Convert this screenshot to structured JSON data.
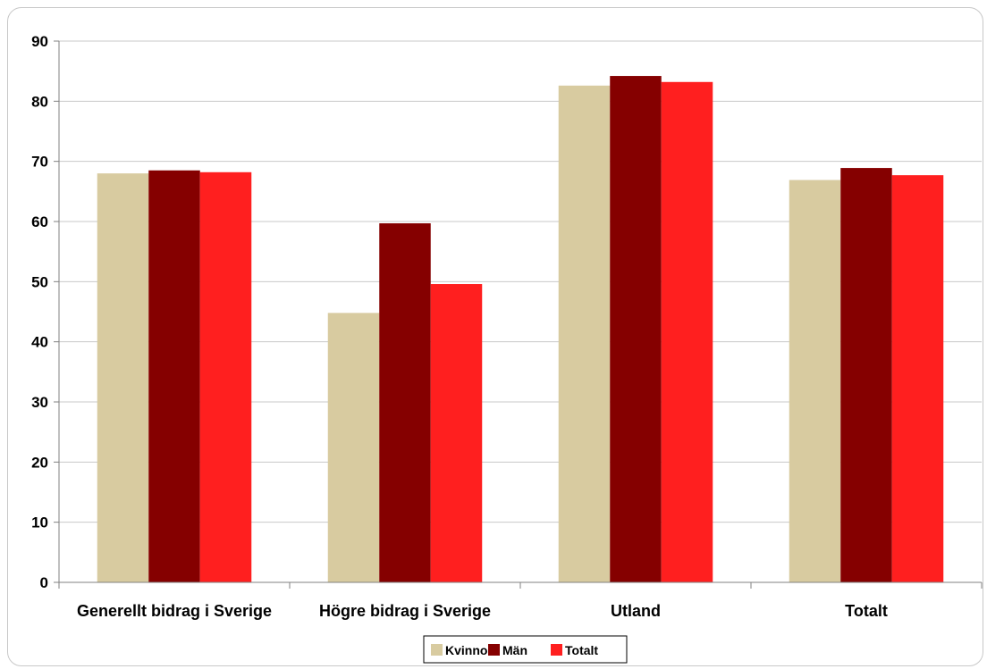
{
  "chart_data": {
    "type": "bar",
    "title": "",
    "xlabel": "",
    "ylabel": "",
    "categories": [
      "Generellt bidrag i Sverige",
      "Högre bidrag i Sverige",
      "Utland",
      "Totalt"
    ],
    "series": [
      {
        "name": "Kvinnor",
        "color": "#d8cba0",
        "values": [
          68,
          44.8,
          82.6,
          66.9
        ]
      },
      {
        "name": "Män",
        "color": "#850000",
        "values": [
          68.5,
          59.7,
          84.2,
          68.9
        ]
      },
      {
        "name": "Totalt",
        "color": "#ff1f1f",
        "values": [
          68.2,
          49.6,
          83.2,
          67.7
        ]
      }
    ],
    "ylim": [
      0,
      90
    ],
    "yticks": [
      0,
      10,
      20,
      30,
      40,
      50,
      60,
      70,
      80,
      90
    ],
    "grid": true,
    "legend_position": "bottom-center"
  }
}
